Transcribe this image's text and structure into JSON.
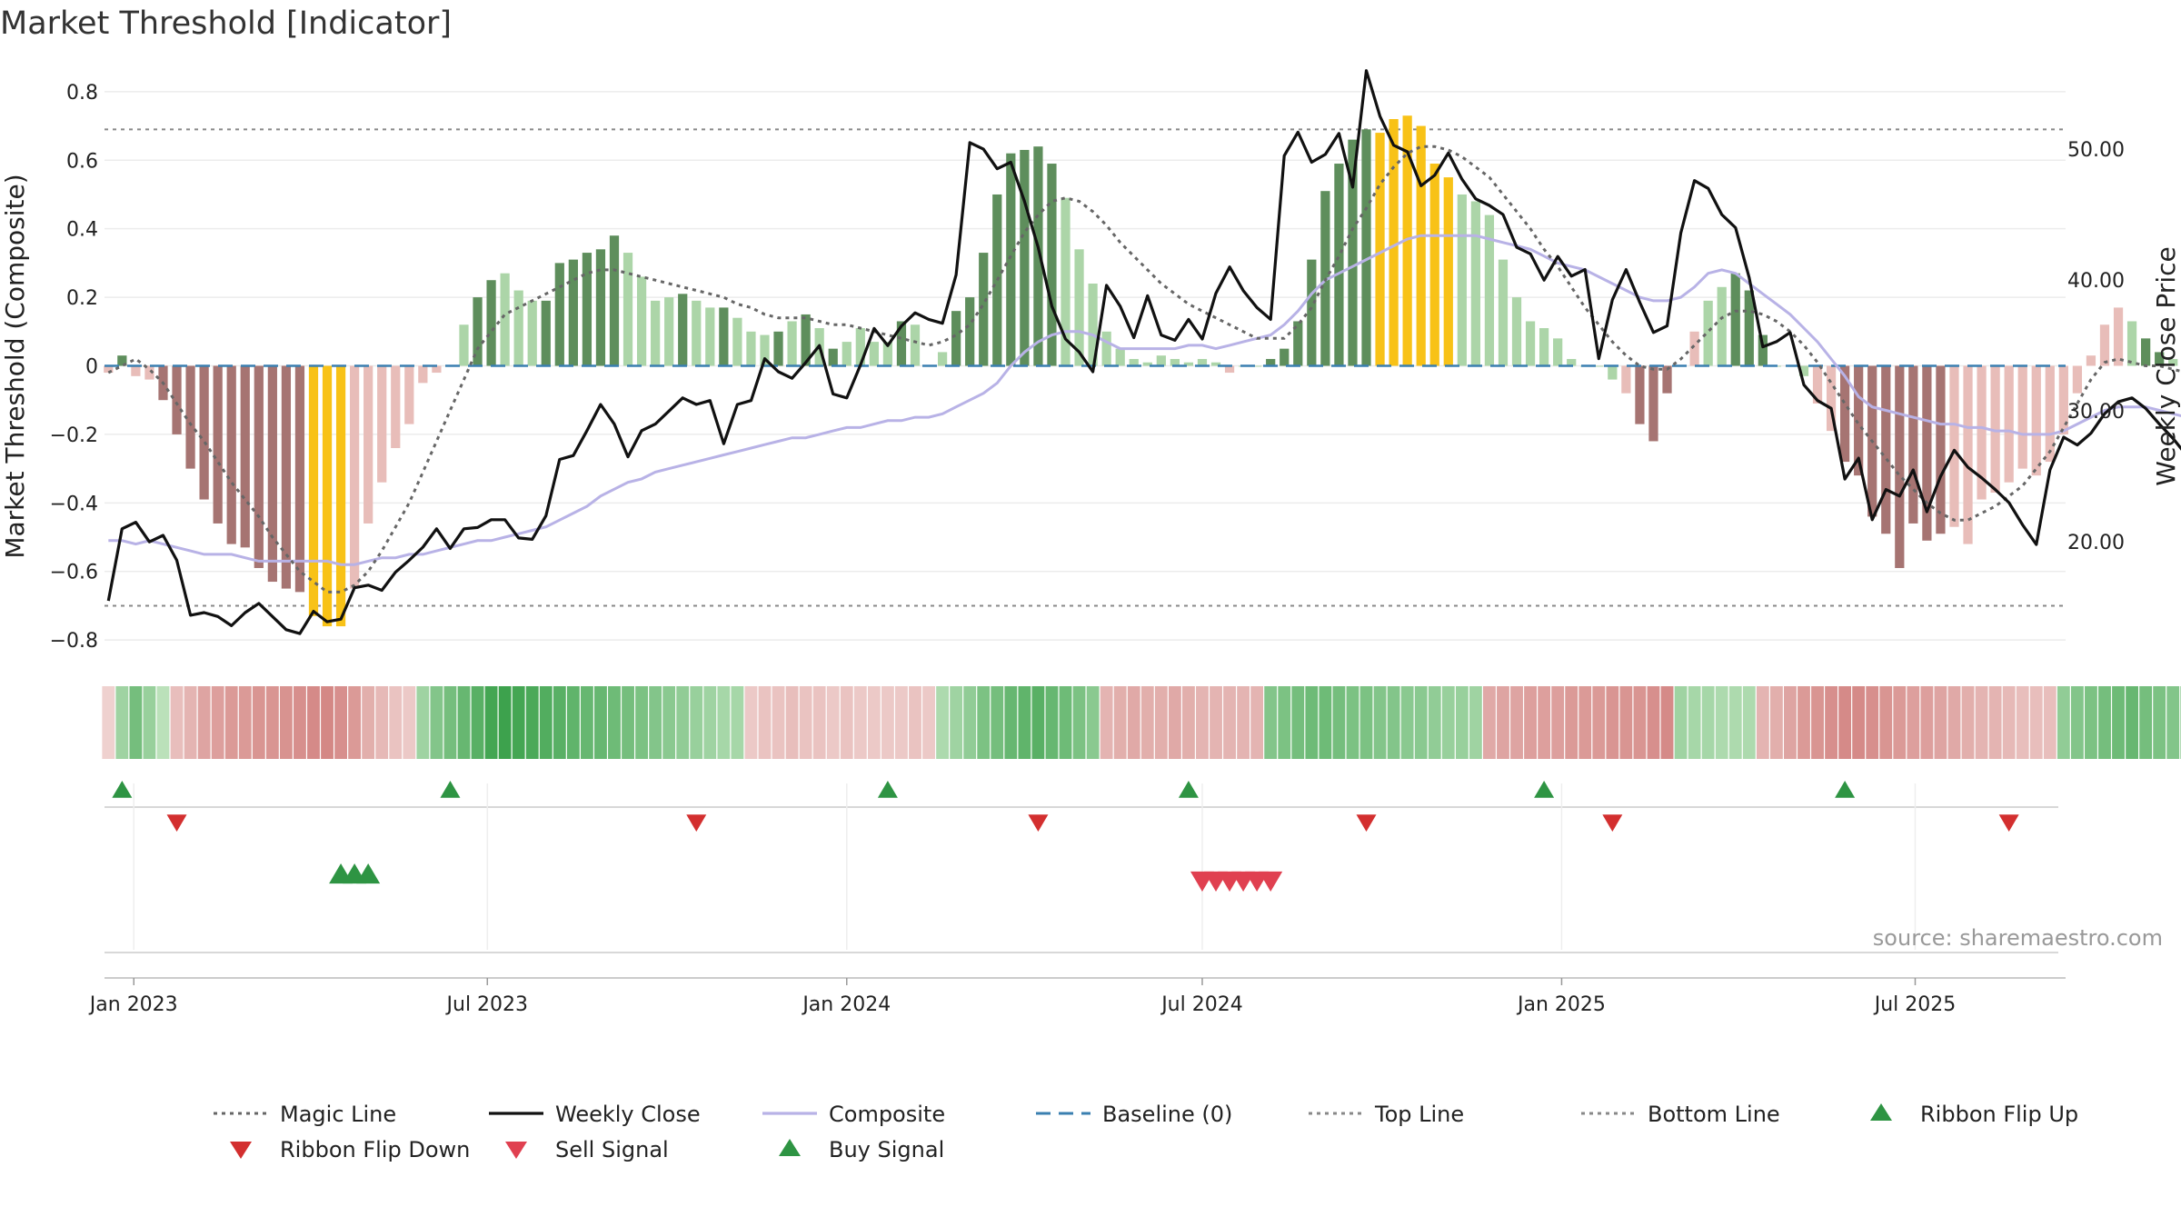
{
  "title": "Market Threshold [Indicator]",
  "source_note": "source: sharemaestro.com",
  "colors": {
    "bar_dark_red": "#a67472",
    "bar_light_red": "#e8bdb9",
    "bar_dark_green": "#5e8e5c",
    "bar_light_green": "#acd5a8",
    "bar_gold": "#f8c217",
    "weekly_close": "#111111",
    "composite": "#b8b2e6",
    "magic_line": "#666666",
    "baseline": "#3a7fb0",
    "threshold_lines": "#888888",
    "signal_up": "#2e9443",
    "signal_down": "#d32f2f",
    "sell_signal": "#e04050",
    "ribbon_green_light": "#c9e8c6",
    "ribbon_green_dark": "#3da24d",
    "ribbon_red_light": "#f0d3d1",
    "ribbon_red_dark": "#c96b68"
  },
  "chart_data": {
    "type": "bar",
    "title": "Market Threshold [Indicator]",
    "y_left_label": "Market Threshold (Composite)",
    "y_right_label": "Weekly Close Price",
    "y_left_ticks": [
      "0.8",
      "0.6",
      "0.4",
      "0.2",
      "0",
      "−0.2",
      "−0.4",
      "−0.6",
      "−0.8"
    ],
    "y_left_tick_values": [
      0.8,
      0.6,
      0.4,
      0.2,
      0,
      -0.2,
      -0.4,
      -0.6,
      -0.8
    ],
    "y_left_range": [
      -0.85,
      0.85
    ],
    "y_right_ticks": [
      "50.00",
      "40.00",
      "30.00",
      "20.00"
    ],
    "y_right_tick_values": [
      50,
      40,
      30,
      20
    ],
    "y_right_range": [
      11.2,
      55.7
    ],
    "x_ticks": [
      "Jan 2023",
      "Jul 2023",
      "Jan 2024",
      "Jul 2024",
      "Jan 2025",
      "Jul 2025"
    ],
    "x_tick_dates": [
      "2023-01-01",
      "2023-07-01",
      "2024-01-01",
      "2024-07-01",
      "2025-01-01",
      "2025-07-01"
    ],
    "x_range": [
      "2022-12-17",
      "2025-09-16"
    ],
    "first_week": "2022-12-19",
    "top_line": 0.69,
    "bottom_line": -0.7,
    "grid": true,
    "legend_position": "bottom",
    "composite_bars": [
      -0.02,
      0.03,
      -0.03,
      -0.04,
      -0.1,
      -0.2,
      -0.3,
      -0.39,
      -0.46,
      -0.52,
      -0.53,
      -0.59,
      -0.63,
      -0.65,
      -0.66,
      -0.73,
      -0.76,
      -0.76,
      -0.65,
      -0.46,
      -0.34,
      -0.24,
      -0.17,
      -0.05,
      -0.02,
      0,
      0.12,
      0.2,
      0.25,
      0.27,
      0.22,
      0.19,
      0.19,
      0.3,
      0.31,
      0.33,
      0.34,
      0.38,
      0.33,
      0.26,
      0.19,
      0.2,
      0.21,
      0.19,
      0.17,
      0.17,
      0.14,
      0.1,
      0.09,
      0.1,
      0.13,
      0.15,
      0.11,
      0.05,
      0.07,
      0.11,
      0.07,
      0.07,
      0.13,
      0.12,
      0,
      0.04,
      0.16,
      0.2,
      0.33,
      0.5,
      0.62,
      0.63,
      0.64,
      0.59,
      0.49,
      0.34,
      0.24,
      0.1,
      0.05,
      0.02,
      0.01,
      0.03,
      0.02,
      0.01,
      0.02,
      0.01,
      -0.02,
      0,
      0,
      0.02,
      0.05,
      0.13,
      0.31,
      0.51,
      0.59,
      0.66,
      0.69,
      0.68,
      0.72,
      0.73,
      0.7,
      0.59,
      0.55,
      0.5,
      0.48,
      0.44,
      0.31,
      0.2,
      0.13,
      0.11,
      0.08,
      0.02,
      0,
      0,
      -0.04,
      -0.08,
      -0.17,
      -0.22,
      -0.08,
      0,
      0.1,
      0.19,
      0.23,
      0.27,
      0.22,
      0.09,
      0,
      0,
      -0.03,
      -0.11,
      -0.19,
      -0.28,
      -0.32,
      -0.44,
      -0.49,
      -0.59,
      -0.46,
      -0.51,
      -0.49,
      -0.47,
      -0.52,
      -0.39,
      -0.37,
      -0.34,
      -0.3,
      -0.32,
      -0.28,
      -0.2,
      -0.08,
      0.03,
      0.12,
      0.17,
      0.13,
      0.08,
      0.04,
      0.02,
      0,
      -0.03,
      -0.07,
      -0.14,
      -0.22,
      -0.26,
      -0.27,
      -0.31,
      -0.38,
      -0.47,
      -0.45,
      -0.43
    ],
    "series": [
      {
        "name": "Magic Line",
        "values": [
          -0.02,
          0,
          0.02,
          -0.01,
          -0.05,
          -0.11,
          -0.17,
          -0.22,
          -0.28,
          -0.34,
          -0.39,
          -0.44,
          -0.5,
          -0.55,
          -0.6,
          -0.63,
          -0.66,
          -0.66,
          -0.64,
          -0.6,
          -0.54,
          -0.47,
          -0.4,
          -0.31,
          -0.22,
          -0.13,
          -0.04,
          0.05,
          0.1,
          0.15,
          0.17,
          0.19,
          0.21,
          0.23,
          0.25,
          0.27,
          0.28,
          0.28,
          0.27,
          0.26,
          0.25,
          0.24,
          0.23,
          0.22,
          0.21,
          0.2,
          0.18,
          0.17,
          0.15,
          0.14,
          0.14,
          0.14,
          0.13,
          0.12,
          0.12,
          0.11,
          0.1,
          0.09,
          0.08,
          0.07,
          0.06,
          0.07,
          0.09,
          0.12,
          0.18,
          0.25,
          0.32,
          0.39,
          0.44,
          0.48,
          0.49,
          0.48,
          0.45,
          0.41,
          0.36,
          0.32,
          0.28,
          0.24,
          0.21,
          0.18,
          0.16,
          0.14,
          0.12,
          0.1,
          0.08,
          0.08,
          0.08,
          0.12,
          0.17,
          0.25,
          0.32,
          0.4,
          0.46,
          0.53,
          0.58,
          0.62,
          0.64,
          0.64,
          0.63,
          0.61,
          0.58,
          0.55,
          0.5,
          0.45,
          0.4,
          0.34,
          0.29,
          0.23,
          0.17,
          0.12,
          0.07,
          0.03,
          0,
          -0.01,
          -0.01,
          0.02,
          0.06,
          0.1,
          0.14,
          0.16,
          0.16,
          0.15,
          0.13,
          0.1,
          0.06,
          0.01,
          -0.05,
          -0.11,
          -0.17,
          -0.22,
          -0.27,
          -0.32,
          -0.36,
          -0.4,
          -0.43,
          -0.45,
          -0.45,
          -0.43,
          -0.41,
          -0.38,
          -0.35,
          -0.3,
          -0.25,
          -0.18,
          -0.11,
          -0.04,
          0.01,
          0.02,
          0.01,
          0,
          0,
          -0.01,
          -0.02,
          -0.04,
          -0.07,
          -0.1,
          -0.13,
          -0.17,
          -0.21,
          -0.25,
          -0.29,
          -0.32,
          -0.35
        ]
      },
      {
        "name": "Weekly Close",
        "values": [
          15.5,
          21.0,
          21.5,
          20.0,
          20.5,
          18.6,
          14.4,
          14.6,
          14.3,
          13.6,
          14.6,
          15.3,
          14.3,
          13.3,
          13.0,
          14.7,
          13.9,
          14.1,
          16.5,
          16.7,
          16.3,
          17.7,
          18.6,
          19.6,
          21.0,
          19.5,
          21.0,
          21.1,
          21.7,
          21.7,
          20.3,
          20.2,
          22.0,
          26.3,
          26.6,
          28.5,
          30.5,
          29.0,
          26.5,
          28.5,
          29.0,
          30.0,
          31.0,
          30.5,
          30.8,
          27.5,
          30.5,
          30.8,
          34.0,
          33.0,
          32.5,
          33.7,
          35.0,
          31.3,
          31.0,
          33.5,
          36.3,
          35.0,
          36.5,
          37.5,
          37.0,
          36.7,
          40.4,
          50.5,
          50.0,
          48.5,
          49.0,
          46.0,
          42.5,
          38.0,
          35.5,
          34.5,
          33.0,
          39.6,
          38.0,
          35.6,
          38.8,
          35.8,
          35.4,
          37.0,
          35.5,
          39.0,
          41.0,
          39.2,
          37.9,
          37.0,
          49.5,
          51.3,
          49.0,
          49.6,
          51.2,
          47.1,
          56.0,
          52.5,
          50.3,
          49.8,
          47.2,
          48.0,
          49.7,
          47.7,
          46.2,
          45.7,
          45.0,
          42.5,
          42.0,
          40.0,
          41.8,
          40.3,
          40.8,
          34.0,
          38.5,
          40.8,
          38.3,
          36.0,
          36.5,
          43.6,
          47.6,
          47.0,
          45.0,
          44.0,
          40.2,
          34.9,
          35.3,
          36.0,
          32.0,
          30.8,
          30.2,
          24.8,
          26.4,
          21.7,
          24.0,
          23.5,
          25.5,
          22.3,
          25.0,
          27.0,
          25.7,
          24.9,
          24.0,
          23.0,
          21.3,
          19.8,
          25.5,
          28.0,
          27.4,
          28.3,
          29.8,
          30.7,
          31.0,
          30.2,
          29.0,
          27.9,
          26.6,
          24.7,
          23.5,
          24.8,
          23.8,
          26.0,
          26.5,
          24.9,
          25.0,
          25.6,
          26.0,
          26.5
        ]
      },
      {
        "name": "Composite",
        "values": [
          -0.51,
          -0.51,
          -0.52,
          -0.51,
          -0.52,
          -0.53,
          -0.54,
          -0.55,
          -0.55,
          -0.55,
          -0.56,
          -0.57,
          -0.57,
          -0.57,
          -0.57,
          -0.57,
          -0.57,
          -0.58,
          -0.58,
          -0.57,
          -0.56,
          -0.56,
          -0.55,
          -0.55,
          -0.54,
          -0.53,
          -0.52,
          -0.51,
          -0.51,
          -0.5,
          -0.49,
          -0.48,
          -0.47,
          -0.45,
          -0.43,
          -0.41,
          -0.38,
          -0.36,
          -0.34,
          -0.33,
          -0.31,
          -0.3,
          -0.29,
          -0.28,
          -0.27,
          -0.26,
          -0.25,
          -0.24,
          -0.23,
          -0.22,
          -0.21,
          -0.21,
          -0.2,
          -0.19,
          -0.18,
          -0.18,
          -0.17,
          -0.16,
          -0.16,
          -0.15,
          -0.15,
          -0.14,
          -0.12,
          -0.1,
          -0.08,
          -0.05,
          0,
          0.04,
          0.07,
          0.09,
          0.1,
          0.1,
          0.09,
          0.07,
          0.05,
          0.05,
          0.05,
          0.05,
          0.05,
          0.06,
          0.06,
          0.05,
          0.06,
          0.07,
          0.08,
          0.09,
          0.12,
          0.16,
          0.21,
          0.25,
          0.27,
          0.29,
          0.31,
          0.33,
          0.35,
          0.37,
          0.38,
          0.38,
          0.38,
          0.38,
          0.38,
          0.37,
          0.36,
          0.35,
          0.34,
          0.32,
          0.3,
          0.29,
          0.28,
          0.26,
          0.24,
          0.22,
          0.2,
          0.19,
          0.19,
          0.2,
          0.23,
          0.27,
          0.28,
          0.27,
          0.24,
          0.21,
          0.18,
          0.15,
          0.11,
          0.07,
          0.02,
          -0.03,
          -0.09,
          -0.12,
          -0.13,
          -0.14,
          -0.15,
          -0.16,
          -0.17,
          -0.17,
          -0.18,
          -0.18,
          -0.19,
          -0.19,
          -0.2,
          -0.2,
          -0.2,
          -0.19,
          -0.17,
          -0.15,
          -0.13,
          -0.12,
          -0.12,
          -0.12,
          -0.13,
          -0.14,
          -0.15,
          -0.17,
          -0.19,
          -0.2,
          -0.21,
          -0.22,
          -0.22,
          -0.23,
          -0.23,
          -0.23
        ]
      }
    ],
    "baseline": 0,
    "ribbon_strength": [
      -0.02,
      0.3,
      0.6,
      0.35,
      0.1,
      -0.2,
      -0.3,
      -0.45,
      -0.5,
      -0.55,
      -0.55,
      -0.6,
      -0.6,
      -0.62,
      -0.65,
      -0.7,
      -0.72,
      -0.65,
      -0.55,
      -0.35,
      -0.25,
      -0.15,
      -0.1,
      0.3,
      0.5,
      0.6,
      0.7,
      0.8,
      0.95,
      1.0,
      0.95,
      0.9,
      0.85,
      0.8,
      0.75,
      0.7,
      0.7,
      0.65,
      0.6,
      0.55,
      0.5,
      0.45,
      0.4,
      0.35,
      0.3,
      0.25,
      0.25,
      -0.1,
      -0.15,
      -0.15,
      -0.2,
      -0.15,
      -0.15,
      -0.1,
      -0.15,
      -0.1,
      -0.1,
      -0.1,
      -0.1,
      -0.15,
      -0.1,
      0.2,
      0.3,
      0.4,
      0.55,
      0.6,
      0.7,
      0.75,
      0.8,
      0.7,
      0.65,
      0.55,
      0.45,
      -0.3,
      -0.35,
      -0.4,
      -0.35,
      -0.35,
      -0.4,
      -0.35,
      -0.3,
      -0.3,
      -0.3,
      -0.3,
      -0.3,
      0.5,
      0.55,
      0.6,
      0.65,
      0.65,
      0.6,
      0.55,
      0.55,
      0.5,
      0.5,
      0.45,
      0.45,
      0.4,
      0.35,
      0.35,
      0.3,
      -0.4,
      -0.45,
      -0.45,
      -0.5,
      -0.5,
      -0.5,
      -0.55,
      -0.55,
      -0.55,
      -0.6,
      -0.6,
      -0.6,
      -0.65,
      -0.7,
      0.3,
      0.25,
      0.25,
      0.2,
      0.2,
      0.2,
      -0.3,
      -0.35,
      -0.45,
      -0.55,
      -0.6,
      -0.65,
      -0.7,
      -0.7,
      -0.65,
      -0.6,
      -0.55,
      -0.5,
      -0.5,
      -0.45,
      -0.4,
      -0.35,
      -0.3,
      -0.3,
      -0.25,
      -0.2,
      -0.2,
      -0.2,
      0.4,
      0.5,
      0.55,
      0.6,
      0.65,
      0.7,
      0.6,
      0.55,
      0.5,
      0.45,
      0.45,
      -0.25,
      -0.3,
      -0.35,
      -0.35,
      -0.4,
      -0.4,
      -0.4,
      -0.35,
      -0.3,
      -0.3
    ],
    "bar_category": [
      1,
      3,
      1,
      1,
      2,
      2,
      2,
      2,
      2,
      2,
      2,
      2,
      2,
      2,
      2,
      0,
      0,
      0,
      1,
      1,
      1,
      1,
      1,
      1,
      1,
      4,
      4,
      3,
      3,
      4,
      4,
      4,
      3,
      3,
      3,
      3,
      3,
      3,
      4,
      4,
      4,
      4,
      3,
      4,
      4,
      3,
      4,
      4,
      4,
      3,
      4,
      3,
      4,
      3,
      4,
      4,
      4,
      4,
      3,
      4,
      4,
      4,
      3,
      3,
      3,
      3,
      3,
      3,
      3,
      3,
      4,
      4,
      4,
      4,
      4,
      4,
      4,
      4,
      4,
      4,
      4,
      4,
      1,
      4,
      4,
      3,
      3,
      3,
      3,
      3,
      3,
      3,
      3,
      0,
      0,
      0,
      0,
      0,
      0,
      4,
      4,
      4,
      4,
      4,
      4,
      4,
      4,
      4,
      4,
      4,
      4,
      1,
      2,
      2,
      2,
      2,
      1,
      4,
      4,
      3,
      3,
      3,
      4,
      4,
      4,
      1,
      1,
      2,
      2,
      2,
      2,
      2,
      2,
      2,
      2,
      1,
      1,
      1,
      1,
      1,
      1,
      1,
      1,
      1,
      1,
      1,
      1,
      1,
      4,
      3,
      3,
      4,
      4,
      4,
      4,
      1,
      2,
      2,
      2,
      2,
      2,
      2,
      2,
      2,
      1
    ],
    "category_names": [
      "gold",
      "light-red",
      "dark-red",
      "dark-green",
      "light-green"
    ],
    "signal_rows": [
      {
        "name": "Ribbon Flip Up",
        "dates": [
          "2022-12-26",
          "2023-06-12",
          "2024-01-22",
          "2024-06-24",
          "2024-12-23",
          "2025-05-26"
        ]
      },
      {
        "name": "Ribbon Flip Down",
        "dates": [
          "2023-01-23",
          "2023-10-16",
          "2024-04-08",
          "2024-09-23",
          "2025-01-27",
          "2025-08-18"
        ]
      },
      {
        "name": "Buy Signal",
        "dates": [
          "2023-04-17",
          "2023-04-24",
          "2023-05-01"
        ]
      },
      {
        "name": "Sell Signal",
        "dates": [
          "2024-07-01",
          "2024-07-08",
          "2024-07-15",
          "2024-07-22",
          "2024-07-29",
          "2024-08-05"
        ]
      }
    ],
    "legend": [
      "Magic Line",
      "Weekly Close",
      "Composite",
      "Baseline (0)",
      "Top Line",
      "Bottom Line",
      "Ribbon Flip Up",
      "Ribbon Flip Down",
      "Sell Signal",
      "Buy Signal"
    ]
  }
}
